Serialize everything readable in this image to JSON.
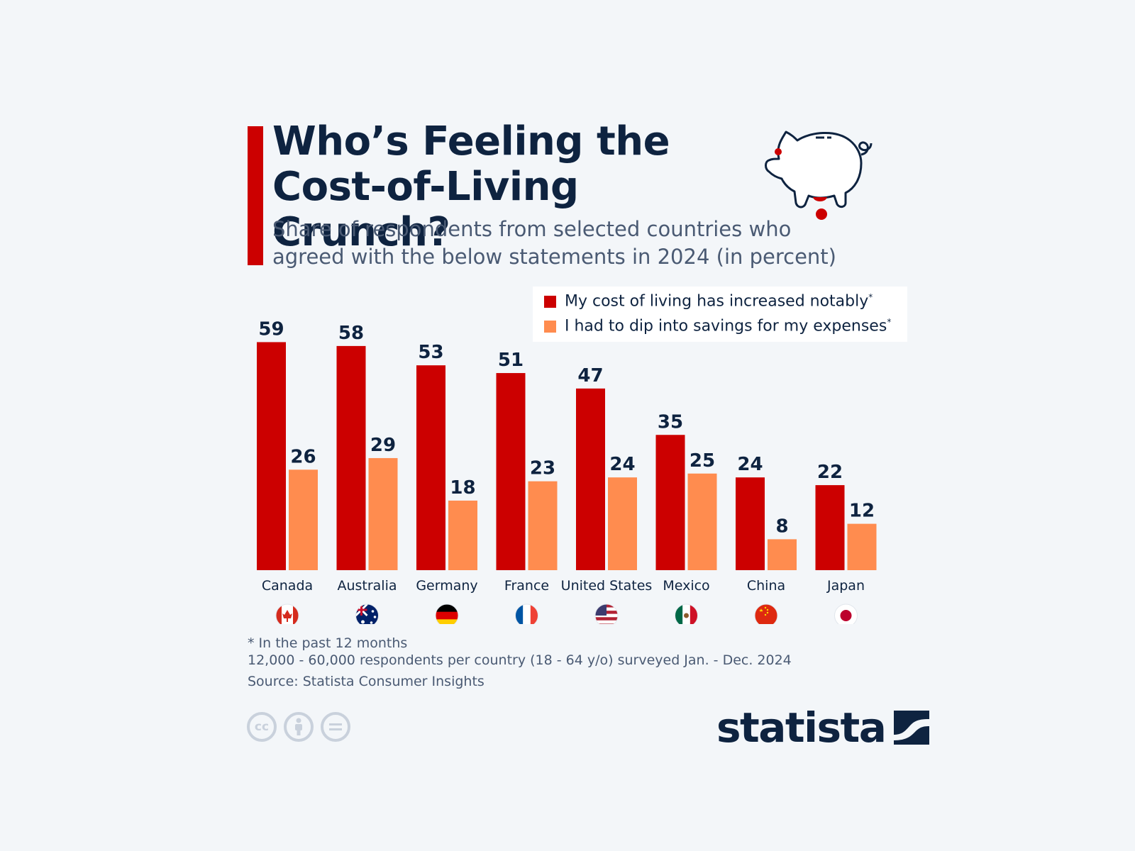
{
  "header": {
    "title_line1": "Who’s Feeling the",
    "title_line2": "Cost-of-Living Crunch?",
    "subtitle_line1": "Share of respondents from selected countries who",
    "subtitle_line2": "agreed with the below statements in 2024 (in percent)"
  },
  "colors": {
    "accent": "#cc0000",
    "series_1": "#cc0000",
    "series_2": "#ff8c4f",
    "text_dark": "#0e2340",
    "background": "#f3f6f9"
  },
  "legend": {
    "item_1": "My cost of living has increased notably",
    "item_2": "I had to dip into savings for my expenses",
    "asterisk": "*"
  },
  "chart_data": {
    "type": "bar",
    "title": "Who’s Feeling the Cost-of-Living Crunch?",
    "categories": [
      "Canada",
      "Australia",
      "Germany",
      "France",
      "United States",
      "Mexico",
      "China",
      "Japan"
    ],
    "series": [
      {
        "name": "My cost of living has increased notably*",
        "values": [
          59,
          58,
          53,
          51,
          47,
          35,
          24,
          22
        ]
      },
      {
        "name": "I had to dip into savings for my expenses*",
        "values": [
          26,
          29,
          18,
          23,
          24,
          25,
          8,
          12
        ]
      }
    ],
    "ylim": [
      0,
      60
    ],
    "grid": false,
    "legend_position": "top-right",
    "data_labels": true,
    "flag_icons": [
      "canada-flag-icon",
      "australia-flag-icon",
      "germany-flag-icon",
      "france-flag-icon",
      "united-states-flag-icon",
      "mexico-flag-icon",
      "china-flag-icon",
      "japan-flag-icon"
    ]
  },
  "footer": {
    "note_1": "* In the past 12 months",
    "note_2": "12,000 - 60,000 respondents per country (18 - 64 y/o) surveyed Jan. - Dec. 2024",
    "source": "Source: Statista Consumer Insights",
    "brand": "statista",
    "license_icons": [
      "cc-icon",
      "attribution-icon",
      "no-derivatives-icon"
    ],
    "cc_label": "cc"
  }
}
